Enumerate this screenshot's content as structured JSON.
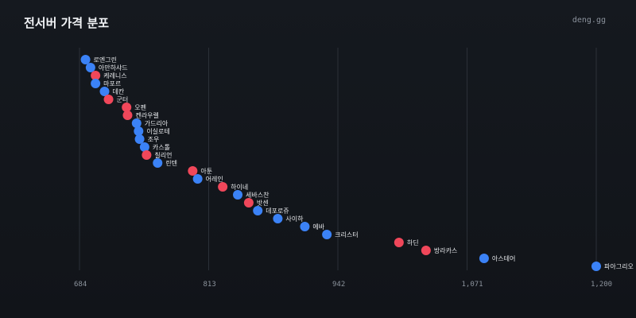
{
  "header": {
    "title": "전서버 가격 분포",
    "brand": "deng.gg"
  },
  "colors": {
    "blue": "#3b82f6",
    "red": "#f0475a"
  },
  "chart_data": {
    "type": "scatter",
    "title": "전서버 가격 분포",
    "xlabel": "",
    "ylabel": "",
    "xlim": [
      684,
      1200
    ],
    "xticks": [
      684,
      813,
      942,
      1071,
      1200
    ],
    "xtick_labels": [
      "684",
      "813",
      "942",
      "1,071",
      "1,200"
    ],
    "grid": true,
    "points": [
      {
        "label": "로엔그린",
        "value": 690,
        "color": "blue"
      },
      {
        "label": "아만하샤드",
        "value": 695,
        "color": "blue"
      },
      {
        "label": "케레니스",
        "value": 700,
        "color": "red"
      },
      {
        "label": "마포르",
        "value": 700,
        "color": "blue"
      },
      {
        "label": "데칸",
        "value": 709,
        "color": "blue"
      },
      {
        "label": "군터",
        "value": 713,
        "color": "red"
      },
      {
        "label": "오펜",
        "value": 731,
        "color": "red"
      },
      {
        "label": "켄라우렐",
        "value": 732,
        "color": "red"
      },
      {
        "label": "가드리아",
        "value": 741,
        "color": "blue"
      },
      {
        "label": "이실로테",
        "value": 743,
        "color": "blue"
      },
      {
        "label": "조우",
        "value": 744,
        "color": "blue"
      },
      {
        "label": "카스톨",
        "value": 749,
        "color": "blue"
      },
      {
        "label": "칠리언",
        "value": 751,
        "color": "red"
      },
      {
        "label": "린텐",
        "value": 762,
        "color": "blue"
      },
      {
        "label": "아툰",
        "value": 797,
        "color": "red"
      },
      {
        "label": "어레인",
        "value": 802,
        "color": "blue"
      },
      {
        "label": "하이네",
        "value": 827,
        "color": "red"
      },
      {
        "label": "세바스찬",
        "value": 842,
        "color": "blue"
      },
      {
        "label": "밧센",
        "value": 853,
        "color": "red"
      },
      {
        "label": "데포로쥬",
        "value": 862,
        "color": "blue"
      },
      {
        "label": "사이하",
        "value": 882,
        "color": "blue"
      },
      {
        "label": "에바",
        "value": 909,
        "color": "blue"
      },
      {
        "label": "크리스터",
        "value": 931,
        "color": "blue"
      },
      {
        "label": "하딘",
        "value": 1003,
        "color": "red"
      },
      {
        "label": "방라카스",
        "value": 1030,
        "color": "red"
      },
      {
        "label": "아스테어",
        "value": 1088,
        "color": "blue"
      },
      {
        "label": "파아그리오",
        "value": 1200,
        "color": "blue"
      }
    ]
  }
}
